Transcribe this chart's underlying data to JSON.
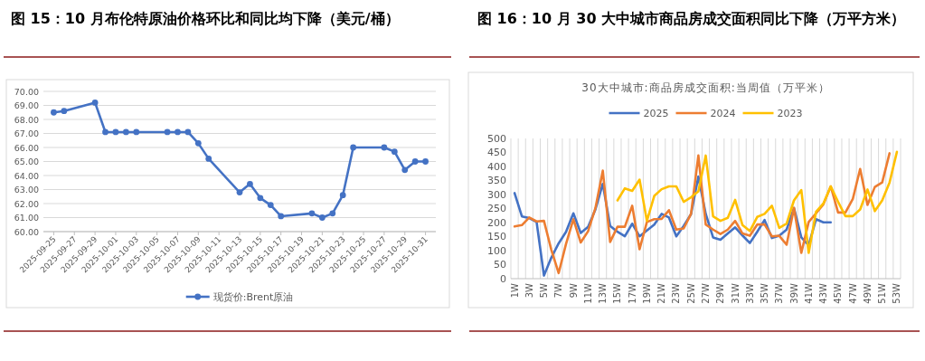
{
  "chart_data": [
    {
      "type": "line",
      "title": "图 15：10 月布伦特原油价格环比和同比均下降（美元/桶）",
      "x": [
        "2025-09-25",
        "2025-09-26",
        "2025-09-29",
        "2025-09-30",
        "2025-10-01",
        "2025-10-02",
        "2025-10-03",
        "2025-10-06",
        "2025-10-07",
        "2025-10-08",
        "2025-10-09",
        "2025-10-10",
        "2025-10-13",
        "2025-10-14",
        "2025-10-15",
        "2025-10-16",
        "2025-10-17",
        "2025-10-20",
        "2025-10-21",
        "2025-10-22",
        "2025-10-23",
        "2025-10-24",
        "2025-10-27",
        "2025-10-28",
        "2025-10-29",
        "2025-10-30",
        "2025-10-31"
      ],
      "series": [
        {
          "name": "现货价:Brent原油",
          "color": "#4472c4",
          "values": [
            68.5,
            68.6,
            69.2,
            67.1,
            67.1,
            67.1,
            67.1,
            67.1,
            67.1,
            67.1,
            66.3,
            65.2,
            62.8,
            63.4,
            62.4,
            61.9,
            61.1,
            61.3,
            61.0,
            61.3,
            62.6,
            66.0,
            66.0,
            65.7,
            64.4,
            65.0,
            65.0
          ]
        }
      ],
      "xlim": [
        "2025-09-24",
        "2025-11-01"
      ],
      "xticks": [
        "2025-09-25",
        "2025-09-27",
        "2025-09-29",
        "2025-10-01",
        "2025-10-03",
        "2025-10-05",
        "2025-10-07",
        "2025-10-09",
        "2025-10-11",
        "2025-10-13",
        "2025-10-15",
        "2025-10-17",
        "2025-10-19",
        "2025-10-21",
        "2025-10-23",
        "2025-10-25",
        "2025-10-27",
        "2025-10-29",
        "2025-10-31"
      ],
      "ylim": [
        60,
        70
      ],
      "yticks": [
        {
          "value": 60,
          "label": "60.00"
        },
        {
          "value": 61,
          "label": "61.00"
        },
        {
          "value": 62,
          "label": "62.00"
        },
        {
          "value": 63,
          "label": "63.00"
        },
        {
          "value": 64,
          "label": "64.00"
        },
        {
          "value": 65,
          "label": "65.00"
        },
        {
          "value": 66,
          "label": "66.00"
        },
        {
          "value": 67,
          "label": "67.00"
        },
        {
          "value": 68,
          "label": "68.00"
        },
        {
          "value": 69,
          "label": "69.00"
        },
        {
          "value": 70,
          "label": "70.00"
        }
      ],
      "grid": "y",
      "legend": "bottom",
      "marker": "circle"
    },
    {
      "type": "line",
      "title": "图 16：10 月 30 大中城市商品房成交面积同比下降（万平方米）",
      "subtitle": "30大中城市:商品房成交面积:当周值（万平米）",
      "categories": [
        "1W",
        null,
        "3W",
        null,
        "5W",
        null,
        "7W",
        null,
        "9W",
        null,
        "11W",
        null,
        "13W",
        null,
        "15W",
        null,
        "17W",
        null,
        "19W",
        null,
        "21W",
        null,
        "23W",
        null,
        "25W",
        null,
        "27W",
        null,
        "29W",
        null,
        "31W",
        null,
        "33W",
        null,
        "35W",
        null,
        "37W",
        null,
        "39W",
        null,
        "41W",
        null,
        "43W",
        null,
        "45W",
        null,
        "47W",
        null,
        "49W",
        null,
        "51W",
        null,
        "53W"
      ],
      "series": [
        {
          "name": "2025",
          "color": "#4472c4",
          "values": [
            305,
            222,
            216,
            202,
            11,
            75,
            126,
            167,
            233,
            163,
            185,
            247,
            338,
            188,
            167,
            151,
            196,
            151,
            172,
            193,
            231,
            218,
            151,
            188,
            230,
            364,
            231,
            147,
            139,
            161,
            183,
            154,
            127,
            167,
            209,
            145,
            153,
            175,
            252,
            147,
            119,
            212,
            201,
            201,
            null,
            null,
            null,
            null,
            null,
            null,
            null,
            null,
            null
          ]
        },
        {
          "name": "2024",
          "color": "#ed7d31",
          "values": [
            186,
            191,
            218,
            204,
            206,
            103,
            20,
            124,
            212,
            129,
            169,
            252,
            385,
            131,
            185,
            185,
            260,
            105,
            202,
            212,
            213,
            244,
            175,
            179,
            231,
            439,
            193,
            175,
            159,
            175,
            206,
            161,
            153,
            193,
            193,
            151,
            153,
            121,
            252,
            92,
            202,
            233,
            265,
            329,
            236,
            236,
            284,
            391,
            263,
            327,
            343,
            447,
            null
          ]
        },
        {
          "name": "2023",
          "color": "#ffc000",
          "values": [
            null,
            null,
            null,
            null,
            null,
            null,
            null,
            null,
            null,
            null,
            null,
            null,
            null,
            null,
            279,
            322,
            313,
            353,
            206,
            295,
            319,
            329,
            329,
            274,
            290,
            311,
            439,
            222,
            206,
            217,
            281,
            191,
            170,
            220,
            231,
            260,
            181,
            196,
            279,
            316,
            92,
            238,
            268,
            329,
            274,
            223,
            223,
            247,
            318,
            241,
            279,
            343,
            452
          ]
        }
      ],
      "ylim": [
        0,
        500
      ],
      "yticks": [
        0,
        50,
        100,
        150,
        200,
        250,
        300,
        350,
        400,
        450,
        500
      ],
      "grid": "x",
      "legend": "top"
    }
  ]
}
